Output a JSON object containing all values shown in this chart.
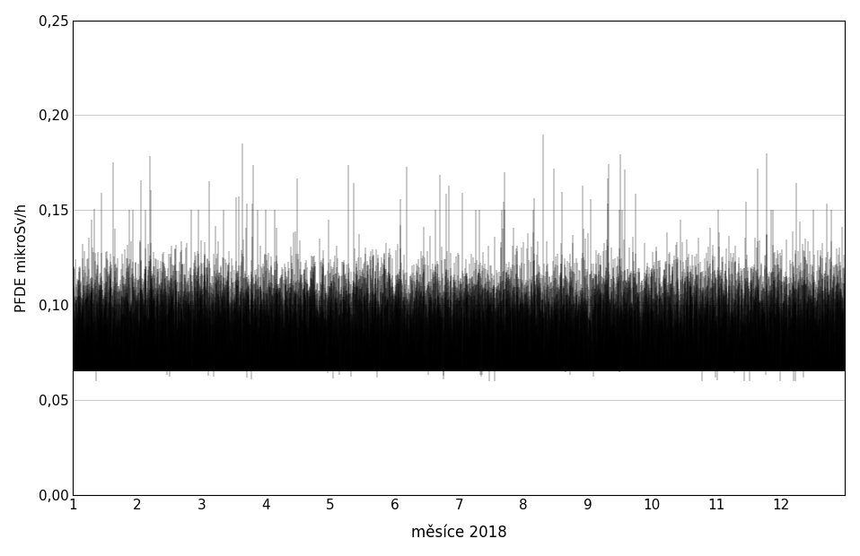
{
  "xlabel": "měsíce 2018",
  "ylabel": "PFDE mikroSv/h",
  "xlim": [
    1,
    13.0
  ],
  "ylim": [
    0.0,
    0.25
  ],
  "yticks": [
    0.0,
    0.05,
    0.1,
    0.15,
    0.2,
    0.25
  ],
  "ytick_labels": [
    "0,00",
    "0,05",
    "0,10",
    "0,15",
    "0,20",
    "0,25"
  ],
  "xticks": [
    1,
    2,
    3,
    4,
    5,
    6,
    7,
    8,
    9,
    10,
    11,
    12
  ],
  "grid_color": "#c0c0c0",
  "line_color": "#000000",
  "background_color": "#ffffff",
  "n_points": 8760,
  "base_mean": 0.1,
  "base_std": 0.013,
  "spike_prob": 0.008,
  "spike_mean": 0.155,
  "spike_std": 0.015,
  "spike_max": 0.19,
  "min_val": 0.06,
  "max_val": 0.145,
  "seed": 42
}
